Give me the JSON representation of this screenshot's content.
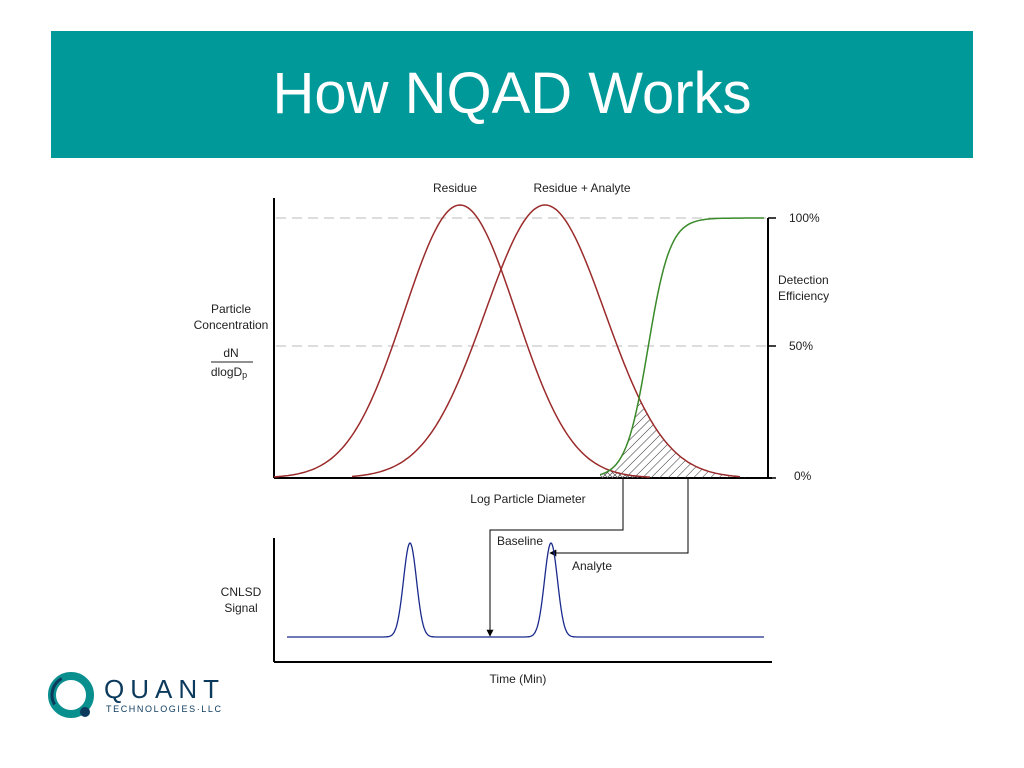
{
  "slide": {
    "title": "How NQAD Works"
  },
  "top_plot": {
    "curve_labels": {
      "residue": "Residue",
      "residue_analyte": "Residue + Analyte"
    },
    "y_label_left": {
      "line1": "Particle",
      "line2": "Concentration",
      "numerator": "dN",
      "denominator": "dlogD",
      "denominator_subscript": "p"
    },
    "y_label_right": {
      "line1": "Detection",
      "line2": "Efficiency"
    },
    "right_ticks": [
      "100%",
      "50%",
      "0%"
    ],
    "x_label": "Log Particle Diameter"
  },
  "bottom_plot": {
    "y_label": {
      "line1": "CNLSD",
      "line2": "Signal"
    },
    "x_label": "Time (Min)",
    "annotations": {
      "baseline": "Baseline",
      "analyte": "Analyte"
    }
  },
  "colors": {
    "title_bar": "#00999a",
    "distribution_curves": "#9b2b2b",
    "efficiency_curve": "#3a8a2a",
    "signal_trace": "#1a2a8c"
  },
  "logo": {
    "icon": "quant-q-logo-icon",
    "word": "QUANT",
    "subtitle": "TECHNOLOGIES·LLC"
  }
}
